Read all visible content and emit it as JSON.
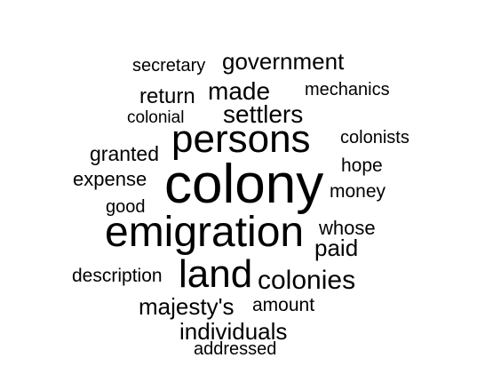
{
  "cloud": {
    "words": {
      "colony": "colony",
      "emigration": "emigration",
      "persons": "persons",
      "land": "land",
      "colonies": "colonies",
      "settlers": "settlers",
      "made": "made",
      "government": "government",
      "paid": "paid",
      "majestys": "majesty's",
      "individuals": "individuals",
      "return": "return",
      "granted": "granted",
      "expense": "expense",
      "whose": "whose",
      "description": "description",
      "money": "money",
      "hope": "hope",
      "amount": "amount",
      "secretary": "secretary",
      "mechanics": "mechanics",
      "colonists": "colonists",
      "good": "good",
      "colonial": "colonial",
      "addressed": "addressed"
    },
    "text_color": "#000000",
    "background_color": "#ffffff"
  }
}
